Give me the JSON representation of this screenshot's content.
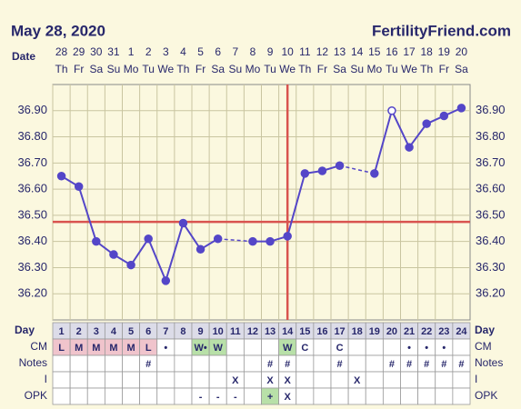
{
  "header": {
    "date": "May 28, 2020",
    "site": "FertilityFriend.com",
    "date_label": "Date"
  },
  "chart_data": {
    "type": "line",
    "categories": [
      "28",
      "29",
      "30",
      "31",
      "1",
      "2",
      "3",
      "4",
      "5",
      "6",
      "7",
      "8",
      "9",
      "10",
      "11",
      "12",
      "13",
      "14",
      "15",
      "16",
      "17",
      "18",
      "19",
      "20"
    ],
    "weekdays": [
      "Th",
      "Fr",
      "Sa",
      "Su",
      "Mo",
      "Tu",
      "We",
      "Th",
      "Fr",
      "Sa",
      "Su",
      "Mo",
      "Tu",
      "We",
      "Th",
      "Fr",
      "Sa",
      "Su",
      "Mo",
      "Tu",
      "We",
      "Th",
      "Fr",
      "Sa"
    ],
    "series": [
      {
        "name": "Temperature",
        "color": "#5446c8",
        "values": [
          36.65,
          36.61,
          36.4,
          36.35,
          36.31,
          36.41,
          36.25,
          36.47,
          36.37,
          36.41,
          null,
          36.4,
          36.4,
          36.42,
          36.66,
          36.67,
          36.69,
          null,
          36.66,
          36.9,
          36.76,
          36.85,
          36.88,
          36.91
        ]
      }
    ],
    "hollow_points": [
      19
    ],
    "ylim": [
      36.1,
      37.0
    ],
    "yticks": [
      {
        "value": 36.2,
        "label": "36.20"
      },
      {
        "value": 36.3,
        "label": "36.30"
      },
      {
        "value": 36.4,
        "label": "36.40"
      },
      {
        "value": 36.5,
        "label": "36.50"
      },
      {
        "value": 36.6,
        "label": "36.60"
      },
      {
        "value": 36.7,
        "label": "36.70"
      },
      {
        "value": 36.8,
        "label": "36.80"
      },
      {
        "value": 36.9,
        "label": "36.90"
      }
    ],
    "coverline": 36.475,
    "coverline_color": "#d9534f",
    "ovulation_index": 13,
    "grid": true
  },
  "table": {
    "rows": [
      {
        "label": "Day",
        "cells": [
          "1",
          "2",
          "3",
          "4",
          "5",
          "6",
          "7",
          "8",
          "9",
          "10",
          "11",
          "12",
          "13",
          "14",
          "15",
          "16",
          "17",
          "18",
          "19",
          "20",
          "21",
          "22",
          "23",
          "24"
        ],
        "fill": "#dcdce8"
      },
      {
        "label": "CM",
        "cells": [
          "L",
          "M",
          "M",
          "M",
          "M",
          "L",
          "•",
          null,
          "W•",
          "W",
          null,
          null,
          null,
          "W",
          "C",
          null,
          "C",
          null,
          null,
          null,
          "•",
          "•",
          "•",
          null
        ],
        "fills": [
          "#f0c4cc",
          "#f0c4cc",
          "#f0c4cc",
          "#f0c4cc",
          "#f0c4cc",
          "#f0c4cc",
          null,
          null,
          "#b8e0a8",
          "#b8e0a8",
          null,
          null,
          null,
          "#b8e0a8",
          null,
          null,
          null,
          null,
          null,
          null,
          null,
          null,
          null,
          null
        ]
      },
      {
        "label": "Notes",
        "cells": [
          null,
          null,
          null,
          null,
          null,
          "#",
          null,
          null,
          null,
          null,
          null,
          null,
          "#",
          "#",
          null,
          null,
          "#",
          null,
          null,
          "#",
          "#",
          "#",
          "#",
          "#"
        ]
      },
      {
        "label": "I",
        "cells": [
          null,
          null,
          null,
          null,
          null,
          null,
          null,
          null,
          null,
          null,
          "X",
          null,
          "X",
          "X",
          null,
          null,
          null,
          "X",
          null,
          null,
          null,
          null,
          null,
          null
        ]
      },
      {
        "label": "OPK",
        "cells": [
          null,
          null,
          null,
          null,
          null,
          null,
          null,
          null,
          "-",
          "-",
          "-",
          null,
          "+",
          "X",
          null,
          null,
          null,
          null,
          null,
          null,
          null,
          null,
          null,
          null
        ],
        "fills": [
          null,
          null,
          null,
          null,
          null,
          null,
          null,
          null,
          null,
          null,
          null,
          null,
          "#b8e0a8",
          null,
          null,
          null,
          null,
          null,
          null,
          null,
          null,
          null,
          null,
          null
        ]
      }
    ]
  }
}
